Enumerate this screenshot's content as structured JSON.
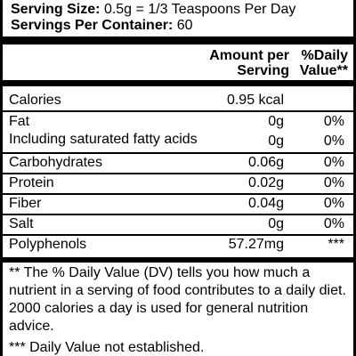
{
  "header": {
    "serving_size_label": "Serving Size:",
    "serving_size_value": "0.5g = 1/3 Teaspoons Per Day",
    "servings_label": "Servings Per Container:",
    "servings_value": "60"
  },
  "columns": {
    "amount_line1": "Amount per",
    "amount_line2": "Serving",
    "dv_line1": "%Daily",
    "dv_line2": "Value**"
  },
  "rows": [
    {
      "name": "Calories",
      "amount": "0.95 kcal",
      "dv": ""
    },
    {
      "name": "Fat",
      "amount": "0g",
      "dv": "0%"
    },
    {
      "name": "Including saturated fatty acids",
      "amount": "0g",
      "dv": "0%"
    },
    {
      "name": "Carbohydrates",
      "amount": "0.06g",
      "dv": "0%"
    },
    {
      "name": "Protein",
      "amount": "0.02g",
      "dv": "0%"
    },
    {
      "name": "Fiber",
      "amount": "0.04g",
      "dv": "0%"
    },
    {
      "name": "Salt",
      "amount": "0g",
      "dv": "0%"
    },
    {
      "name": "Polyphenols",
      "amount": "57.27mg",
      "dv": "***"
    }
  ],
  "footnotes": {
    "dv_note": "** The % Daily Value (DV) tells you how much a nutrient in a serving of food contributes to a daily diet. 2000 calories a day is used for general nutrition advice.",
    "not_established": "*** Daily Value not established."
  }
}
